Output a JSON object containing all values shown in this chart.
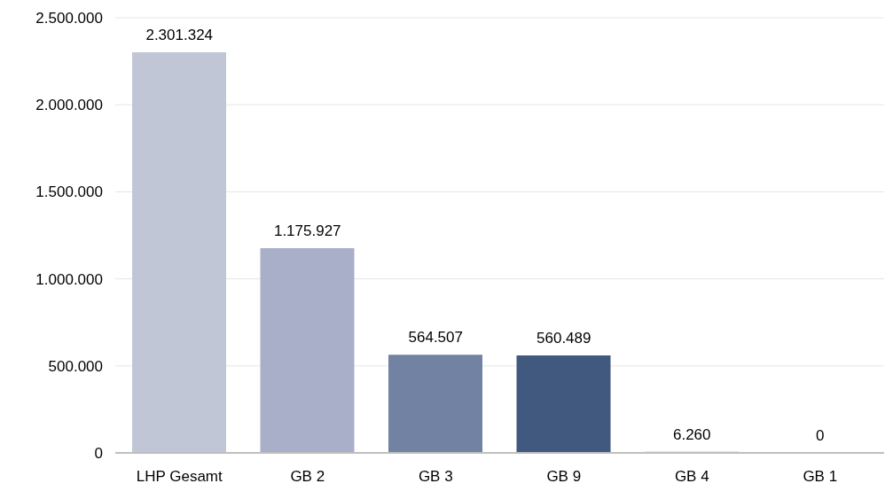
{
  "chart_data": {
    "type": "bar",
    "categories": [
      "LHP Gesamt",
      "GB 2",
      "GB 3",
      "GB 9",
      "GB 4",
      "GB 1"
    ],
    "values": [
      2301324,
      1175927,
      564507,
      560489,
      6260,
      0
    ],
    "colors": [
      "#c1c6d6",
      "#a9aec9",
      "#7282a3",
      "#41597f",
      "#8a98b4",
      "#8a98b4"
    ],
    "value_labels": [
      "2.301.324",
      "1.175.927",
      "564.507",
      "560.489",
      "6.260",
      "0"
    ],
    "ylim": [
      0,
      2500000
    ],
    "yticks": [
      {
        "value": 0,
        "label": "0"
      },
      {
        "value": 500000,
        "label": "500.000"
      },
      {
        "value": 1000000,
        "label": "1.000.000"
      },
      {
        "value": 1500000,
        "label": "1.500.000"
      },
      {
        "value": 2000000,
        "label": "2.000.000"
      },
      {
        "value": 2500000,
        "label": "2.500.000"
      }
    ],
    "grid": "y"
  }
}
